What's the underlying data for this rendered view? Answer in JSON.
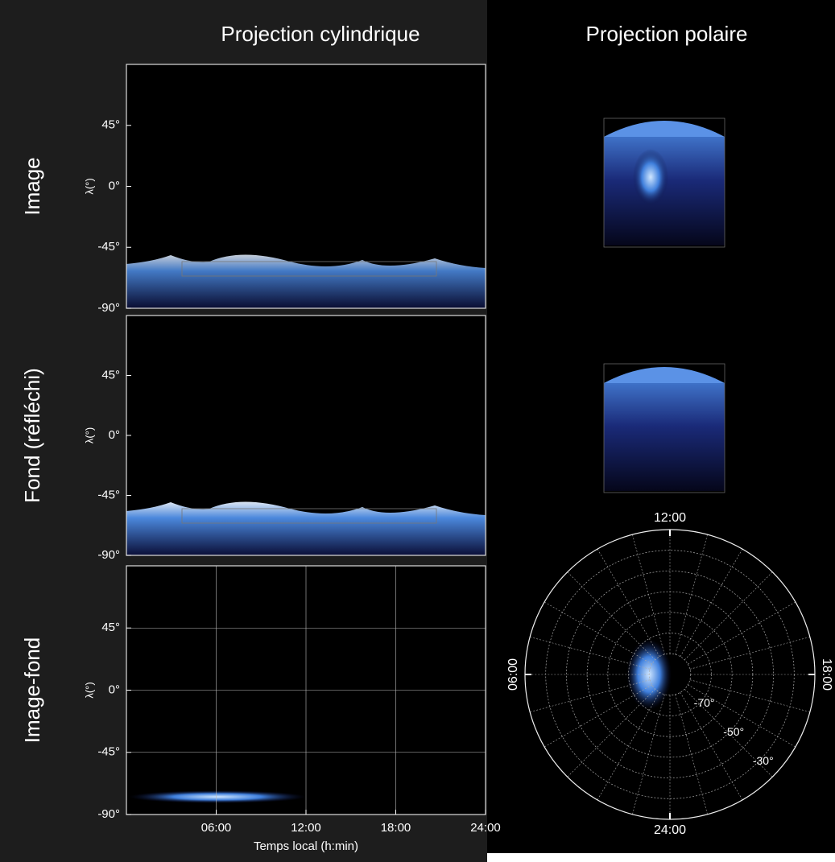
{
  "columns": [
    "Projection cylindrique",
    "Projection polaire"
  ],
  "chart_data": [
    {
      "type": "image",
      "row_label": "Image",
      "y_label": "λ(°)",
      "ylim": [
        -90,
        90
      ],
      "yticks": [
        {
          "value": 45,
          "label": "45°"
        },
        {
          "value": 0,
          "label": "0°"
        },
        {
          "value": -45,
          "label": "-45°"
        },
        {
          "value": -90,
          "label": "-90°"
        }
      ]
    },
    {
      "type": "image",
      "row_label": "Fond (réfléchi)",
      "y_label": "λ(°)",
      "ylim": [
        -90,
        90
      ],
      "yticks": [
        {
          "value": 45,
          "label": "45°"
        },
        {
          "value": 0,
          "label": "0°"
        },
        {
          "value": -45,
          "label": "-45°"
        },
        {
          "value": -90,
          "label": "-90°"
        }
      ]
    },
    {
      "type": "image",
      "row_label": "Image-fond",
      "y_label": "λ(°)",
      "ylim": [
        -90,
        90
      ],
      "yticks": [
        {
          "value": 45,
          "label": "45°"
        },
        {
          "value": 0,
          "label": "0°"
        },
        {
          "value": -45,
          "label": "-45°"
        },
        {
          "value": -90,
          "label": "-90°"
        }
      ],
      "xlim": [
        0,
        24
      ],
      "xticks": [
        {
          "value": 6,
          "label": "06:00"
        },
        {
          "value": 12,
          "label": "12:00"
        },
        {
          "value": 18,
          "label": "18:00"
        },
        {
          "value": 24,
          "label": "24:00"
        }
      ],
      "x_label": "Temps local (h:min)",
      "grid": true
    },
    {
      "type": "polar",
      "rlim": [
        -90,
        -20
      ],
      "grid_step": 10,
      "rticks": [
        {
          "value": -70,
          "label": "-70°"
        },
        {
          "value": -50,
          "label": "-50°"
        },
        {
          "value": -30,
          "label": "-30°"
        }
      ],
      "angle_ticks": [
        {
          "value": 12,
          "label": "12:00"
        },
        {
          "value": 18,
          "label": "18:00"
        },
        {
          "value": 24,
          "label": "24:00"
        },
        {
          "value": 6,
          "label": "06:00"
        }
      ]
    }
  ]
}
